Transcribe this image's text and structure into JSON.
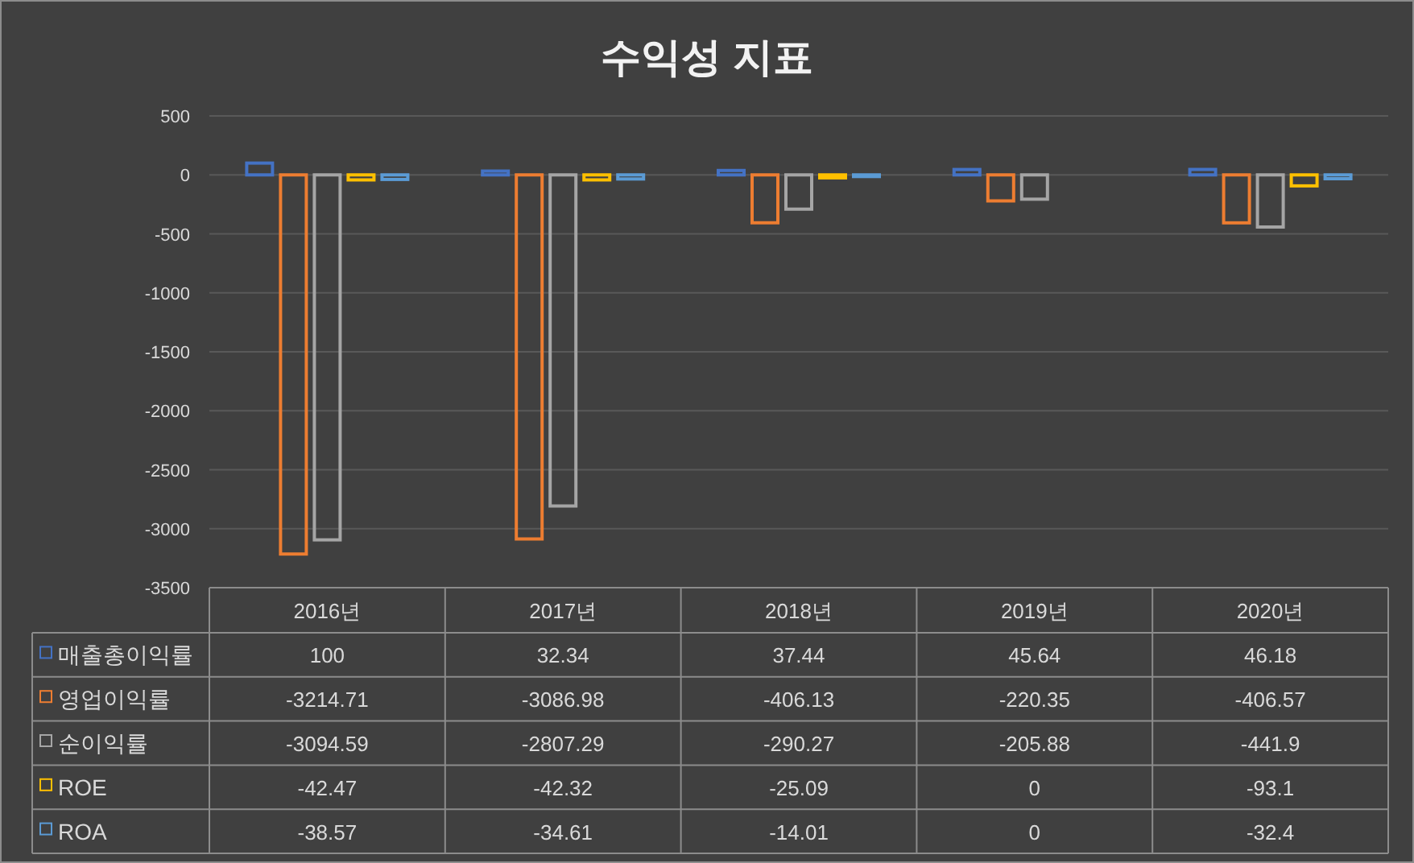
{
  "chart_data": {
    "type": "bar",
    "title": "수익성 지표",
    "categories": [
      "2016년",
      "2017년",
      "2018년",
      "2019년",
      "2020년"
    ],
    "series": [
      {
        "name": "매출총이익률",
        "color": "#4472c4",
        "values": [
          100,
          32.34,
          37.44,
          45.64,
          46.18
        ]
      },
      {
        "name": "영업이익률",
        "color": "#ed7d31",
        "values": [
          -3214.71,
          -3086.98,
          -406.13,
          -220.35,
          -406.57
        ]
      },
      {
        "name": "순이익률",
        "color": "#a5a5a5",
        "values": [
          -3094.59,
          -2807.29,
          -290.27,
          -205.88,
          -441.9
        ]
      },
      {
        "name": "ROE",
        "color": "#ffc000",
        "values": [
          -42.47,
          -42.32,
          -25.09,
          0,
          -93.1
        ]
      },
      {
        "name": "ROA",
        "color": "#5b9bd5",
        "values": [
          -38.57,
          -34.61,
          -14.01,
          0,
          -32.4
        ]
      }
    ],
    "ylim": [
      -3500,
      500
    ],
    "yticks": [
      500,
      0,
      -500,
      -1000,
      -1500,
      -2000,
      -2500,
      -3000,
      -3500
    ],
    "grid": "y",
    "legend": "bottom",
    "data_labels": true
  }
}
